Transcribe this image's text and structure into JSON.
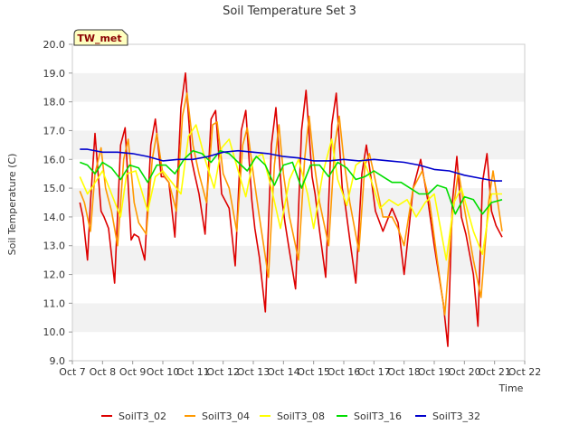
{
  "chart_data": {
    "type": "line",
    "title": "Soil Temperature Set 3",
    "xlabel": "Time",
    "ylabel": "Soil Temperature (C)",
    "ylim": [
      9.0,
      20.0
    ],
    "yticks": [
      "9.0",
      "10.0",
      "11.0",
      "12.0",
      "13.0",
      "14.0",
      "15.0",
      "16.0",
      "17.0",
      "18.0",
      "19.0",
      "20.0"
    ],
    "xlim": [
      0,
      15
    ],
    "xticks": [
      "Oct 7",
      "Oct 8",
      "Oct 9",
      "Oct 10",
      "Oct 11",
      "Oct 12",
      "Oct 13",
      "Oct 14",
      "Oct 15",
      "Oct 16",
      "Oct 17",
      "Oct 18",
      "Oct 19",
      "Oct 20",
      "Oct 21",
      "Oct 22"
    ],
    "grid": "horizontal bands",
    "legend_position": "bottom",
    "badge": "TW_met",
    "series": [
      {
        "name": "SoilT3_02",
        "color": "#dd0000",
        "x": [
          0.25,
          0.35,
          0.5,
          0.6,
          0.75,
          0.95,
          1.05,
          1.2,
          1.4,
          1.6,
          1.75,
          1.95,
          2.05,
          2.2,
          2.4,
          2.6,
          2.75,
          2.95,
          3.05,
          3.2,
          3.4,
          3.6,
          3.75,
          3.95,
          4.05,
          4.2,
          4.4,
          4.6,
          4.75,
          4.95,
          5.05,
          5.2,
          5.4,
          5.6,
          5.75,
          5.95,
          6.05,
          6.2,
          6.4,
          6.6,
          6.75,
          6.95,
          7.05,
          7.2,
          7.4,
          7.6,
          7.75,
          7.95,
          8.05,
          8.2,
          8.4,
          8.6,
          8.75,
          8.95,
          9.05,
          9.2,
          9.4,
          9.6,
          9.75,
          9.95,
          10.05,
          10.3,
          10.6,
          10.8,
          11.0,
          11.3,
          11.55,
          11.8,
          12.0,
          12.3,
          12.45,
          12.6,
          12.75,
          12.9,
          13.05,
          13.3,
          13.45,
          13.6,
          13.75,
          13.9,
          14.05,
          14.25
        ],
        "y": [
          14.5,
          14.0,
          12.5,
          14.5,
          16.9,
          14.2,
          14.0,
          13.6,
          11.7,
          16.5,
          17.1,
          13.2,
          13.4,
          13.3,
          12.5,
          16.5,
          17.4,
          15.4,
          15.4,
          15.2,
          13.3,
          17.8,
          19.0,
          16.0,
          15.5,
          14.8,
          13.4,
          17.4,
          17.7,
          14.8,
          14.6,
          14.3,
          12.3,
          17.0,
          17.7,
          14.6,
          13.6,
          12.6,
          10.7,
          16.5,
          17.8,
          14.6,
          13.8,
          12.8,
          11.5,
          17.0,
          18.4,
          15.4,
          14.8,
          13.5,
          11.9,
          17.2,
          18.3,
          15.0,
          14.4,
          13.2,
          11.7,
          15.5,
          16.5,
          15.0,
          14.2,
          13.5,
          14.3,
          13.8,
          12.0,
          15.0,
          16.0,
          14.5,
          13.0,
          11.0,
          9.5,
          14.5,
          16.1,
          14.0,
          13.4,
          12.0,
          10.2,
          15.2,
          16.2,
          14.2,
          13.7,
          13.3
        ]
      },
      {
        "name": "SoilT3_04",
        "color": "#ff9900",
        "x": [
          0.25,
          0.4,
          0.6,
          0.75,
          0.95,
          1.1,
          1.3,
          1.5,
          1.7,
          1.85,
          2.05,
          2.2,
          2.45,
          2.65,
          2.8,
          3.0,
          3.2,
          3.45,
          3.65,
          3.8,
          4.0,
          4.2,
          4.45,
          4.65,
          4.8,
          5.0,
          5.2,
          5.45,
          5.65,
          5.8,
          6.0,
          6.2,
          6.5,
          6.7,
          6.85,
          7.0,
          7.2,
          7.5,
          7.7,
          7.85,
          8.0,
          8.2,
          8.5,
          8.7,
          8.85,
          9.0,
          9.2,
          9.5,
          9.7,
          9.85,
          10.0,
          10.3,
          10.6,
          10.8,
          11.0,
          11.3,
          11.6,
          11.85,
          12.1,
          12.35,
          12.6,
          12.8,
          13.0,
          13.3,
          13.55,
          13.8,
          13.95,
          14.25
        ],
        "y": [
          14.9,
          14.5,
          13.5,
          15.5,
          16.4,
          15.0,
          14.2,
          13.0,
          16.0,
          16.7,
          14.5,
          13.8,
          13.4,
          16.0,
          16.9,
          15.5,
          15.2,
          14.2,
          17.5,
          18.3,
          16.5,
          15.5,
          14.5,
          17.2,
          17.3,
          15.5,
          15.0,
          13.5,
          16.5,
          17.1,
          15.5,
          14.0,
          11.9,
          15.8,
          17.2,
          15.5,
          14.0,
          12.5,
          16.0,
          17.5,
          16.0,
          14.5,
          13.0,
          16.5,
          17.5,
          16.0,
          14.5,
          12.8,
          15.8,
          16.2,
          15.5,
          14.0,
          14.0,
          13.6,
          13.0,
          15.0,
          15.6,
          14.5,
          12.5,
          10.6,
          14.0,
          15.6,
          14.3,
          12.5,
          11.2,
          14.5,
          15.6,
          13.5
        ]
      },
      {
        "name": "SoilT3_08",
        "color": "#ffff00",
        "x": [
          0.25,
          0.5,
          0.7,
          1.0,
          1.3,
          1.6,
          1.8,
          2.1,
          2.5,
          2.75,
          3.0,
          3.3,
          3.6,
          3.85,
          4.1,
          4.4,
          4.7,
          4.95,
          5.2,
          5.5,
          5.75,
          6.0,
          6.3,
          6.6,
          6.9,
          7.2,
          7.5,
          7.8,
          8.0,
          8.3,
          8.6,
          8.8,
          9.1,
          9.4,
          9.65,
          9.9,
          10.2,
          10.5,
          10.8,
          11.1,
          11.4,
          11.7,
          12.0,
          12.4,
          12.65,
          12.9,
          13.3,
          13.6,
          13.9,
          14.25
        ],
        "y": [
          15.4,
          14.8,
          15.1,
          15.6,
          14.8,
          14.0,
          15.5,
          15.6,
          14.2,
          15.4,
          15.6,
          15.2,
          14.8,
          16.8,
          17.2,
          16.0,
          15.0,
          16.4,
          16.7,
          15.6,
          14.7,
          16.0,
          16.2,
          15.0,
          13.6,
          15.3,
          16.0,
          14.8,
          13.6,
          15.5,
          16.7,
          15.3,
          14.4,
          15.8,
          16.0,
          15.3,
          14.3,
          14.6,
          14.4,
          14.6,
          14.0,
          14.5,
          14.8,
          12.5,
          14.5,
          15.0,
          13.5,
          12.7,
          14.8,
          14.8
        ]
      },
      {
        "name": "SoilT3_16",
        "color": "#00dd00",
        "x": [
          0.25,
          0.5,
          0.75,
          1.0,
          1.3,
          1.6,
          1.9,
          2.2,
          2.5,
          2.8,
          3.1,
          3.4,
          3.7,
          4.0,
          4.3,
          4.6,
          4.9,
          5.2,
          5.5,
          5.8,
          6.1,
          6.4,
          6.7,
          7.0,
          7.3,
          7.6,
          7.9,
          8.2,
          8.5,
          8.8,
          9.1,
          9.4,
          9.7,
          10.0,
          10.3,
          10.6,
          10.9,
          11.2,
          11.5,
          11.8,
          12.1,
          12.4,
          12.7,
          13.0,
          13.3,
          13.6,
          13.9,
          14.25
        ],
        "y": [
          15.9,
          15.8,
          15.5,
          15.9,
          15.7,
          15.3,
          15.8,
          15.7,
          15.2,
          15.8,
          15.8,
          15.5,
          16.0,
          16.3,
          16.2,
          15.9,
          16.3,
          16.2,
          15.9,
          15.6,
          16.1,
          15.8,
          15.1,
          15.8,
          15.9,
          15.0,
          15.8,
          15.8,
          15.4,
          15.9,
          15.7,
          15.3,
          15.4,
          15.6,
          15.4,
          15.2,
          15.2,
          15.0,
          14.8,
          14.8,
          15.1,
          15.0,
          14.1,
          14.7,
          14.6,
          14.1,
          14.5,
          14.6
        ]
      },
      {
        "name": "SoilT3_32",
        "color": "#0000cc",
        "x": [
          0.25,
          0.5,
          1.0,
          1.5,
          2.0,
          2.5,
          3.0,
          3.5,
          4.0,
          4.5,
          5.0,
          5.5,
          6.0,
          6.5,
          7.0,
          7.5,
          8.0,
          8.5,
          9.0,
          9.5,
          10.0,
          10.5,
          11.0,
          11.5,
          12.0,
          12.5,
          13.0,
          13.5,
          14.0,
          14.25
        ],
        "y": [
          16.35,
          16.35,
          16.25,
          16.25,
          16.2,
          16.1,
          15.95,
          16.0,
          16.0,
          16.1,
          16.25,
          16.3,
          16.25,
          16.2,
          16.1,
          16.05,
          15.95,
          15.95,
          16.0,
          15.95,
          16.0,
          15.95,
          15.9,
          15.8,
          15.65,
          15.6,
          15.45,
          15.35,
          15.25,
          15.25
        ]
      }
    ]
  }
}
